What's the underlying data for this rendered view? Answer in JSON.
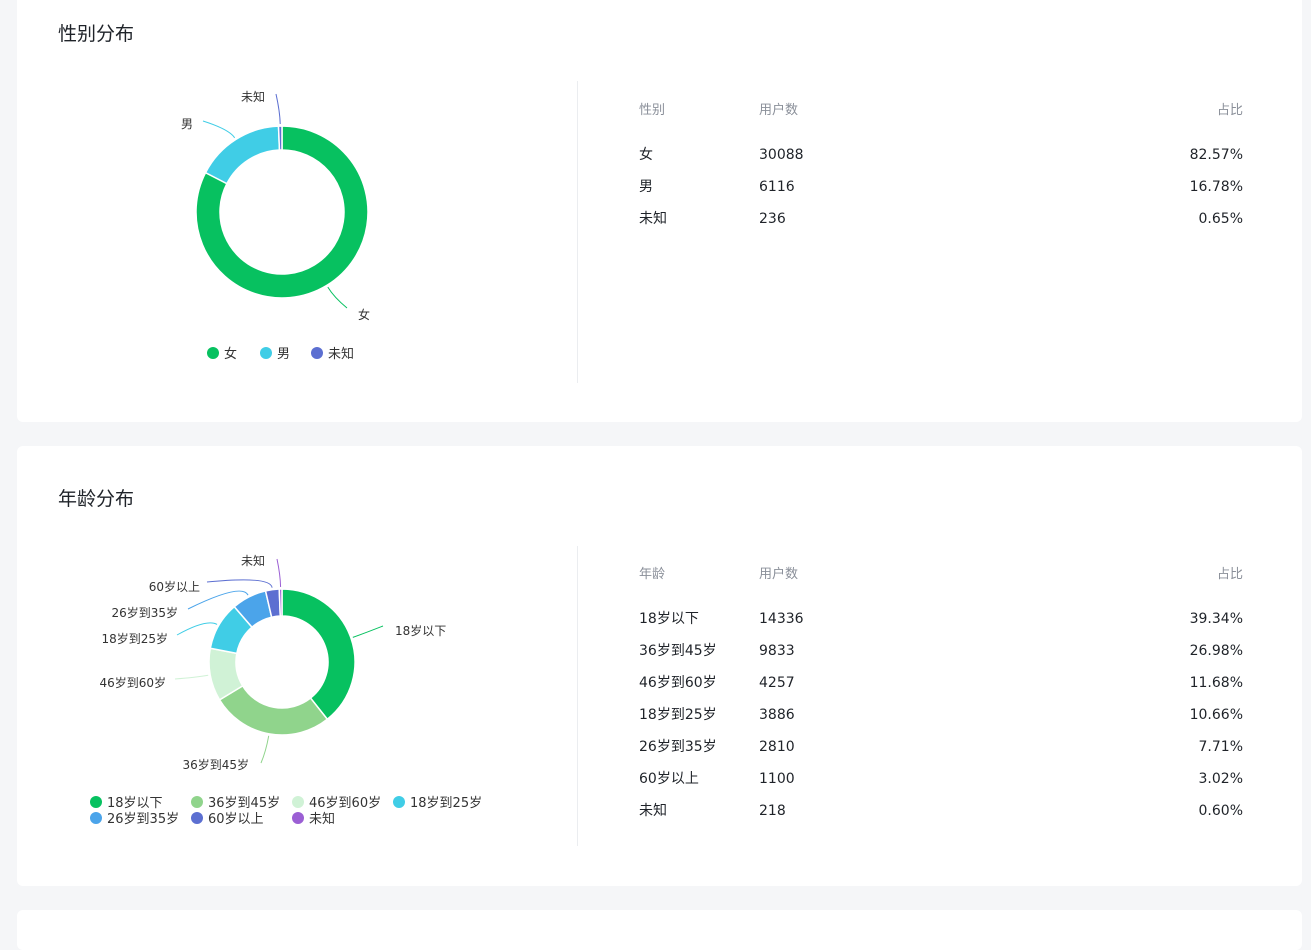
{
  "colors": {
    "green": "#07c160",
    "cyan": "#40cde6",
    "indigo": "#5c6fd1",
    "light_green": "#90d48c",
    "pale_green": "#d0f2d6",
    "blue": "#4ba4ea",
    "purple": "#9b5fd4"
  },
  "gender": {
    "title": "性别分布",
    "table": {
      "headers": [
        "性别",
        "用户数",
        "占比"
      ],
      "rows": [
        {
          "label": "女",
          "count": "30088",
          "pct": "82.57%"
        },
        {
          "label": "男",
          "count": "6116",
          "pct": "16.78%"
        },
        {
          "label": "未知",
          "count": "236",
          "pct": "0.65%"
        }
      ]
    }
  },
  "age": {
    "title": "年龄分布",
    "table": {
      "headers": [
        "年龄",
        "用户数",
        "占比"
      ],
      "rows": [
        {
          "label": "18岁以下",
          "count": "14336",
          "pct": "39.34%"
        },
        {
          "label": "36岁到45岁",
          "count": "9833",
          "pct": "26.98%"
        },
        {
          "label": "46岁到60岁",
          "count": "4257",
          "pct": "11.68%"
        },
        {
          "label": "18岁到25岁",
          "count": "3886",
          "pct": "10.66%"
        },
        {
          "label": "26岁到35岁",
          "count": "2810",
          "pct": "7.71%"
        },
        {
          "label": "60岁以上",
          "count": "1100",
          "pct": "3.02%"
        },
        {
          "label": "未知",
          "count": "218",
          "pct": "0.60%"
        }
      ]
    }
  },
  "chart_data": [
    {
      "type": "pie",
      "title": "性别分布",
      "categories": [
        "女",
        "男",
        "未知"
      ],
      "values": [
        30088,
        6116,
        236
      ],
      "percentages": [
        82.57,
        16.78,
        0.65
      ],
      "colors": [
        "#07c160",
        "#40cde6",
        "#5c6fd1"
      ],
      "legend": "bottom"
    },
    {
      "type": "pie",
      "title": "年龄分布",
      "categories": [
        "18岁以下",
        "36岁到45岁",
        "46岁到60岁",
        "18岁到25岁",
        "26岁到35岁",
        "60岁以上",
        "未知"
      ],
      "values": [
        14336,
        9833,
        4257,
        3886,
        2810,
        1100,
        218
      ],
      "percentages": [
        39.34,
        26.98,
        11.68,
        10.66,
        7.71,
        3.02,
        0.6
      ],
      "colors": [
        "#07c160",
        "#90d48c",
        "#d0f2d6",
        "#40cde6",
        "#4ba4ea",
        "#5c6fd1",
        "#9b5fd4"
      ],
      "legend": "bottom"
    }
  ]
}
